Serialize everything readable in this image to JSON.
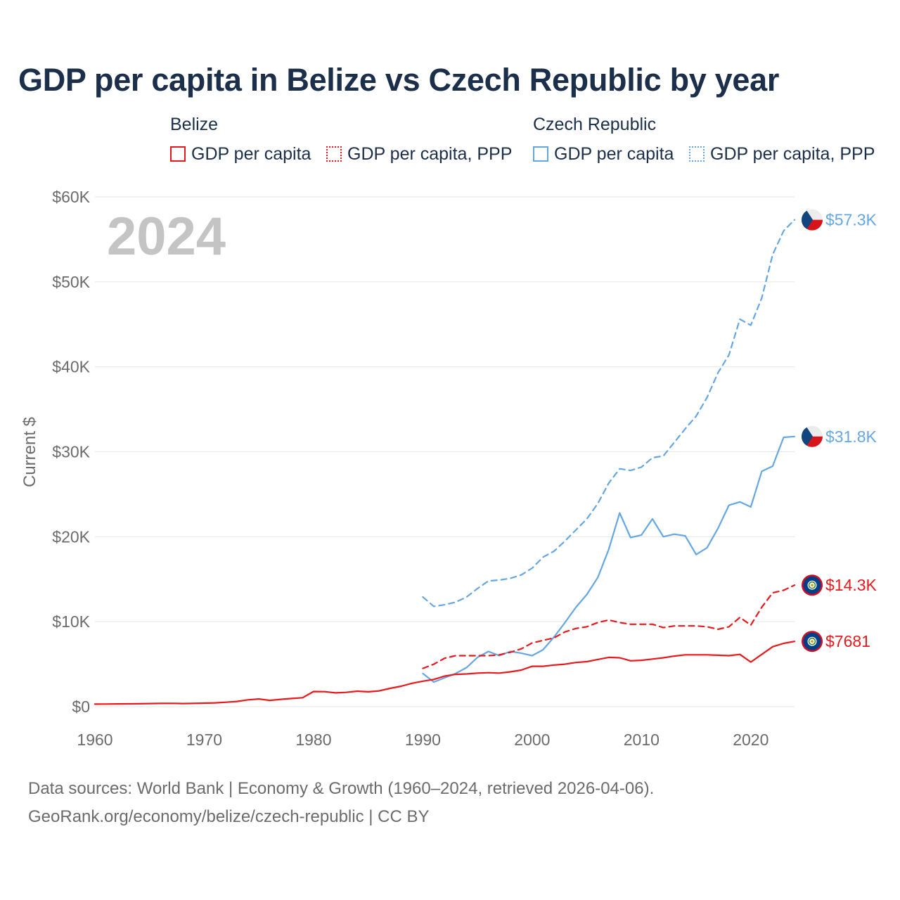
{
  "title": "GDP per capita in Belize vs Czech Republic by year",
  "legend": {
    "groups": [
      {
        "name": "Belize",
        "items": [
          {
            "label": "GDP per capita",
            "color": "#e8191c",
            "style": "solid"
          },
          {
            "label": "GDP per capita, PPP",
            "color": "#e8191c",
            "style": "dotted"
          }
        ]
      },
      {
        "name": "Czech Republic",
        "items": [
          {
            "label": "GDP per capita",
            "color": "#65a7e3",
            "style": "solid"
          },
          {
            "label": "GDP per capita, PPP",
            "color": "#65a7e3",
            "style": "dotted"
          }
        ]
      }
    ]
  },
  "source_line1": "Data sources: World Bank | Economy & Growth (1960–2024, retrieved 2026-04-06).",
  "source_line2": "GeoRank.org/economy/belize/czech-republic | CC BY",
  "chart_data": {
    "type": "line",
    "ylabel": "Current $",
    "xlabel": "",
    "year_label": "2024",
    "xlim": [
      1960,
      2024
    ],
    "ylim": [
      0,
      60000
    ],
    "xticks": [
      1960,
      1970,
      1980,
      1990,
      2000,
      2010,
      2020
    ],
    "xtick_labels": [
      "1960",
      "1970",
      "1980",
      "1990",
      "2000",
      "2010",
      "2020"
    ],
    "yticks": [
      0,
      10000,
      20000,
      30000,
      40000,
      50000,
      60000
    ],
    "ytick_labels": [
      "$0",
      "$10K",
      "$20K",
      "$30K",
      "$40K",
      "$50K",
      "$60K"
    ],
    "grid": true,
    "series": [
      {
        "name": "Czech Republic GDP per capita, PPP",
        "country": "Czech Republic",
        "color": "#65a7e3",
        "dash": "dashed",
        "end_label": "$57.3K",
        "x": [
          1990,
          1991,
          1992,
          1993,
          1994,
          1995,
          1996,
          1997,
          1998,
          1999,
          2000,
          2001,
          2002,
          2003,
          2004,
          2005,
          2006,
          2007,
          2008,
          2009,
          2010,
          2011,
          2012,
          2013,
          2014,
          2015,
          2016,
          2017,
          2018,
          2019,
          2020,
          2021,
          2022,
          2023,
          2024
        ],
        "values": [
          12900,
          11800,
          12000,
          12300,
          12900,
          13900,
          14800,
          14900,
          15100,
          15500,
          16300,
          17600,
          18300,
          19500,
          20800,
          22100,
          23900,
          26300,
          28000,
          27800,
          28200,
          29300,
          29500,
          31100,
          32700,
          34200,
          36400,
          39300,
          41400,
          45600,
          44900,
          48100,
          53200,
          56000,
          57300
        ]
      },
      {
        "name": "Czech Republic GDP per capita",
        "country": "Czech Republic",
        "color": "#65a7e3",
        "dash": "solid",
        "end_label": "$31.8K",
        "x": [
          1990,
          1991,
          1992,
          1993,
          1994,
          1995,
          1996,
          1997,
          1998,
          1999,
          2000,
          2001,
          2002,
          2003,
          2004,
          2005,
          2006,
          2007,
          2008,
          2009,
          2010,
          2011,
          2012,
          2013,
          2014,
          2015,
          2016,
          2017,
          2018,
          2019,
          2020,
          2021,
          2022,
          2023,
          2024
        ],
        "values": [
          3900,
          2900,
          3400,
          3900,
          4600,
          5800,
          6500,
          6000,
          6500,
          6300,
          6000,
          6700,
          8200,
          9900,
          11700,
          13200,
          15200,
          18500,
          22800,
          19900,
          20200,
          22100,
          20000,
          20300,
          20100,
          17900,
          18700,
          21000,
          23700,
          24100,
          23500,
          27700,
          28300,
          31700,
          31800
        ]
      },
      {
        "name": "Belize GDP per capita, PPP",
        "country": "Belize",
        "color": "#e8191c",
        "dash": "dashed",
        "end_label": "$14.3K",
        "x": [
          1990,
          1991,
          1992,
          1993,
          1994,
          1995,
          1996,
          1997,
          1998,
          1999,
          2000,
          2001,
          2002,
          2003,
          2004,
          2005,
          2006,
          2007,
          2008,
          2009,
          2010,
          2011,
          2012,
          2013,
          2014,
          2015,
          2016,
          2017,
          2018,
          2019,
          2020,
          2021,
          2022,
          2023,
          2024
        ],
        "values": [
          4500,
          5000,
          5700,
          6000,
          6000,
          6000,
          6000,
          6100,
          6400,
          6800,
          7500,
          7800,
          8100,
          8800,
          9200,
          9400,
          9900,
          10200,
          9900,
          9700,
          9700,
          9700,
          9300,
          9500,
          9500,
          9500,
          9400,
          9100,
          9400,
          10500,
          9600,
          11700,
          13400,
          13700,
          14300
        ]
      },
      {
        "name": "Belize GDP per capita",
        "country": "Belize",
        "color": "#e8191c",
        "dash": "solid",
        "end_label": "$7681",
        "x": [
          1960,
          1961,
          1962,
          1963,
          1964,
          1965,
          1966,
          1967,
          1968,
          1969,
          1970,
          1971,
          1972,
          1973,
          1974,
          1975,
          1976,
          1977,
          1978,
          1979,
          1980,
          1981,
          1982,
          1983,
          1984,
          1985,
          1986,
          1987,
          1988,
          1989,
          1990,
          1991,
          1992,
          1993,
          1994,
          1995,
          1996,
          1997,
          1998,
          1999,
          2000,
          2001,
          2002,
          2003,
          2004,
          2005,
          2006,
          2007,
          2008,
          2009,
          2010,
          2011,
          2012,
          2013,
          2014,
          2015,
          2016,
          2017,
          2018,
          2019,
          2020,
          2021,
          2022,
          2023,
          2024
        ],
        "values": [
          300,
          310,
          320,
          330,
          340,
          360,
          380,
          390,
          360,
          380,
          410,
          450,
          520,
          610,
          800,
          900,
          740,
          860,
          960,
          1050,
          1780,
          1760,
          1620,
          1680,
          1820,
          1750,
          1850,
          2150,
          2400,
          2750,
          3000,
          3200,
          3600,
          3800,
          3850,
          3950,
          4000,
          3950,
          4100,
          4300,
          4750,
          4750,
          4900,
          5000,
          5200,
          5300,
          5550,
          5800,
          5750,
          5400,
          5450,
          5600,
          5750,
          5950,
          6100,
          6100,
          6100,
          6050,
          6000,
          6150,
          5250,
          6150,
          7050,
          7450,
          7681
        ]
      }
    ]
  }
}
